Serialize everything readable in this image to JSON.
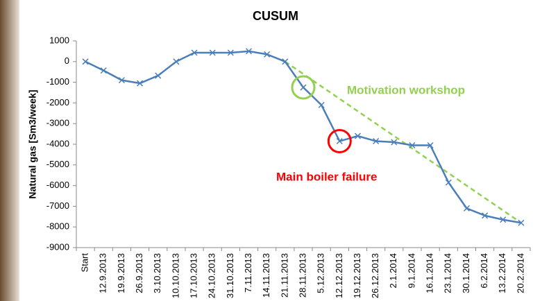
{
  "chart_data": {
    "type": "line",
    "title": "CUSUM",
    "y_label": "Natural gas [Sm3/week]",
    "categories": [
      "Start",
      "12.9.2013",
      "19.9.2013",
      "26.9.2013",
      "3.10.2013",
      "10.10.2013",
      "17.10.2013",
      "24.10.2013",
      "31.10.2013",
      "7.11.2013",
      "14.11.2013",
      "21.11.2013",
      "28.11.2013",
      "5.12.2013",
      "12.12.2013",
      "19.12.2013",
      "26.12.2013",
      "2.1.2014",
      "9.1.2014",
      "16.1.2014",
      "23.1.2014",
      "30.1.2014",
      "6.2.2014",
      "13.2.2014",
      "20.2.2014"
    ],
    "series": [
      {
        "color": "#4a7ebb",
        "values": [
          0,
          -430,
          -900,
          -1050,
          -680,
          0,
          430,
          430,
          430,
          500,
          350,
          0,
          -1250,
          -2100,
          -3850,
          -3600,
          -3850,
          -3900,
          -4050,
          -4050,
          -5850,
          -7100,
          -7450,
          -7650,
          -7800
        ]
      }
    ],
    "trend": {
      "start_index": 11,
      "end_index": 24,
      "values": [
        0,
        -7800
      ],
      "color": "#92d050"
    },
    "annotations": [
      {
        "text": "Motivation workshop",
        "color": "#92d050",
        "index": 12
      },
      {
        "text": "Main boiler failure",
        "color": "#ff0000",
        "index": 14
      }
    ],
    "ylim": [
      -9000,
      1000
    ],
    "yticks": [
      1000,
      0,
      -1000,
      -2000,
      -3000,
      -4000,
      -5000,
      -6000,
      -7000,
      -8000,
      -9000
    ],
    "grid": false
  }
}
